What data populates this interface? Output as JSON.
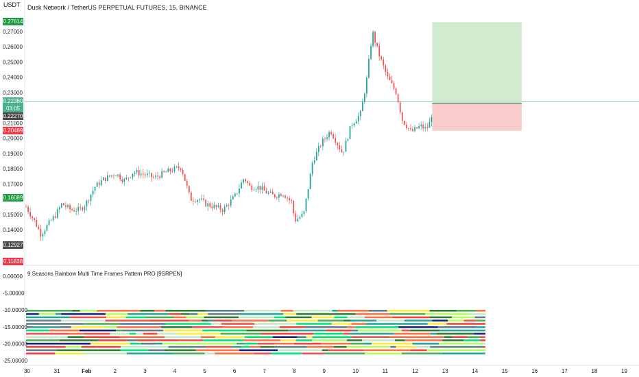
{
  "header": {
    "currency": "USDT",
    "title": "Dusk Network / TetherUS PERPETUAL FUTURES, 15, BINANCE"
  },
  "indicator": {
    "title": "9 Seasons Rainbow Multi Time Frames Pattern PRO [9SRPEN]"
  },
  "badges": {
    "top_green": "0.27614",
    "current_price": "0.22380",
    "countdown": "03:05",
    "dark_price": "0.22270",
    "red_price": "0.20489",
    "low_green": "0.16089",
    "low_dark": "0.12927",
    "bottom_red": "0.11838"
  },
  "colors": {
    "up": "#26a69a",
    "down": "#ef5350",
    "green_badge": "#1e9a3e",
    "red_badge": "#f23645",
    "dark_badge": "#4a4a4a",
    "teal_badge": "#4caf8f",
    "profit_zone": "#c8e8c8",
    "loss_zone": "#f9c8c8"
  },
  "chart_data": {
    "type": "candlestick",
    "title": "Dusk Network / TetherUS PERPETUAL FUTURES, 15, BINANCE",
    "price_ticks": [
      "0.27000",
      "0.26000",
      "0.25000",
      "0.24000",
      "0.23000",
      "0.21000",
      "0.20000",
      "0.19000",
      "0.18000",
      "0.17000",
      "0.15000",
      "0.14000"
    ],
    "indicator_ticks": [
      "0.00000",
      "-5.00000",
      "-10.00000",
      "-15.00000",
      "-20.00000",
      "-25.00000"
    ],
    "time_ticks": [
      "30",
      "31",
      "Feb",
      "2",
      "3",
      "4",
      "5",
      "6",
      "7",
      "8",
      "9",
      "10",
      "11",
      "12",
      "13",
      "14",
      "15",
      "16",
      "17",
      "18",
      "19"
    ],
    "price_path": [
      [
        30.0,
        0.155
      ],
      [
        30.3,
        0.145
      ],
      [
        30.5,
        0.137
      ],
      [
        30.8,
        0.145
      ],
      [
        31.0,
        0.15
      ],
      [
        31.2,
        0.157
      ],
      [
        31.5,
        0.153
      ],
      [
        31.8,
        0.153
      ],
      [
        32.0,
        0.157
      ],
      [
        32.3,
        0.168
      ],
      [
        32.6,
        0.173
      ],
      [
        33.0,
        0.177
      ],
      [
        33.3,
        0.172
      ],
      [
        33.6,
        0.178
      ],
      [
        34.0,
        0.176
      ],
      [
        34.3,
        0.174
      ],
      [
        34.6,
        0.177
      ],
      [
        35.0,
        0.18
      ],
      [
        35.2,
        0.181
      ],
      [
        35.5,
        0.16
      ],
      [
        35.8,
        0.16
      ],
      [
        36.0,
        0.157
      ],
      [
        36.3,
        0.155
      ],
      [
        36.6,
        0.153
      ],
      [
        37.0,
        0.162
      ],
      [
        37.3,
        0.174
      ],
      [
        37.5,
        0.168
      ],
      [
        37.8,
        0.168
      ],
      [
        38.0,
        0.165
      ],
      [
        38.3,
        0.162
      ],
      [
        38.6,
        0.164
      ],
      [
        38.9,
        0.158
      ],
      [
        39.0,
        0.146
      ],
      [
        39.3,
        0.15
      ],
      [
        39.6,
        0.185
      ],
      [
        39.9,
        0.197
      ],
      [
        40.2,
        0.205
      ],
      [
        40.6,
        0.19
      ],
      [
        40.9,
        0.209
      ],
      [
        41.2,
        0.216
      ],
      [
        41.4,
        0.237
      ],
      [
        41.6,
        0.27
      ],
      [
        41.8,
        0.256
      ],
      [
        42.1,
        0.24
      ],
      [
        42.4,
        0.23
      ],
      [
        42.6,
        0.212
      ],
      [
        42.9,
        0.204
      ],
      [
        43.2,
        0.208
      ],
      [
        43.4,
        0.206
      ],
      [
        43.5,
        0.209
      ],
      [
        43.6,
        0.217
      ]
    ],
    "position": {
      "entry": 0.2227,
      "target": 0.27614,
      "stop": 0.20489,
      "start_day": 43.6,
      "end_day": 46.6
    }
  }
}
